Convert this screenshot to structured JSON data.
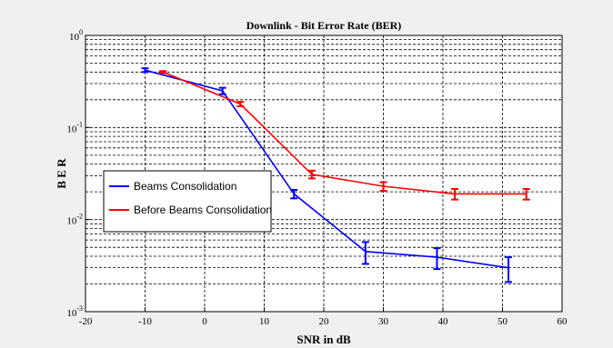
{
  "chart_data": {
    "type": "line",
    "title": "Downlink - Bit Error Rate (BER)",
    "xlabel": "SNR in dB",
    "ylabel": "B E R",
    "xlim": [
      -20,
      60
    ],
    "ylim": [
      0.001,
      1
    ],
    "yscale": "log",
    "grid": true,
    "x_ticks": [
      "-20",
      "-10",
      "0",
      "10",
      "20",
      "30",
      "40",
      "50",
      "60"
    ],
    "y_ticks": [
      {
        "base": "10",
        "exp": "-3",
        "value": 0.001
      },
      {
        "base": "10",
        "exp": "-2",
        "value": 0.01
      },
      {
        "base": "10",
        "exp": "-1",
        "value": 0.1
      },
      {
        "base": "10",
        "exp": "0",
        "value": 1
      }
    ],
    "legend_placement": "left",
    "series": [
      {
        "name": "Beams Consolidation",
        "color": "#0000ff",
        "x": [
          -10,
          3,
          15,
          27,
          39,
          51
        ],
        "y": [
          0.42,
          0.25,
          0.019,
          0.0045,
          0.0039,
          0.003
        ],
        "err": [
          0.02,
          0.02,
          0.002,
          0.0012,
          0.001,
          0.0009
        ]
      },
      {
        "name": "Before Beams Consolidation",
        "color": "#ff0000",
        "x": [
          -7,
          6,
          18,
          30,
          42,
          54
        ],
        "y": [
          0.4,
          0.18,
          0.031,
          0.023,
          0.019,
          0.019
        ],
        "err": [
          0.01,
          0.01,
          0.003,
          0.0025,
          0.0025,
          0.0025
        ]
      }
    ]
  }
}
